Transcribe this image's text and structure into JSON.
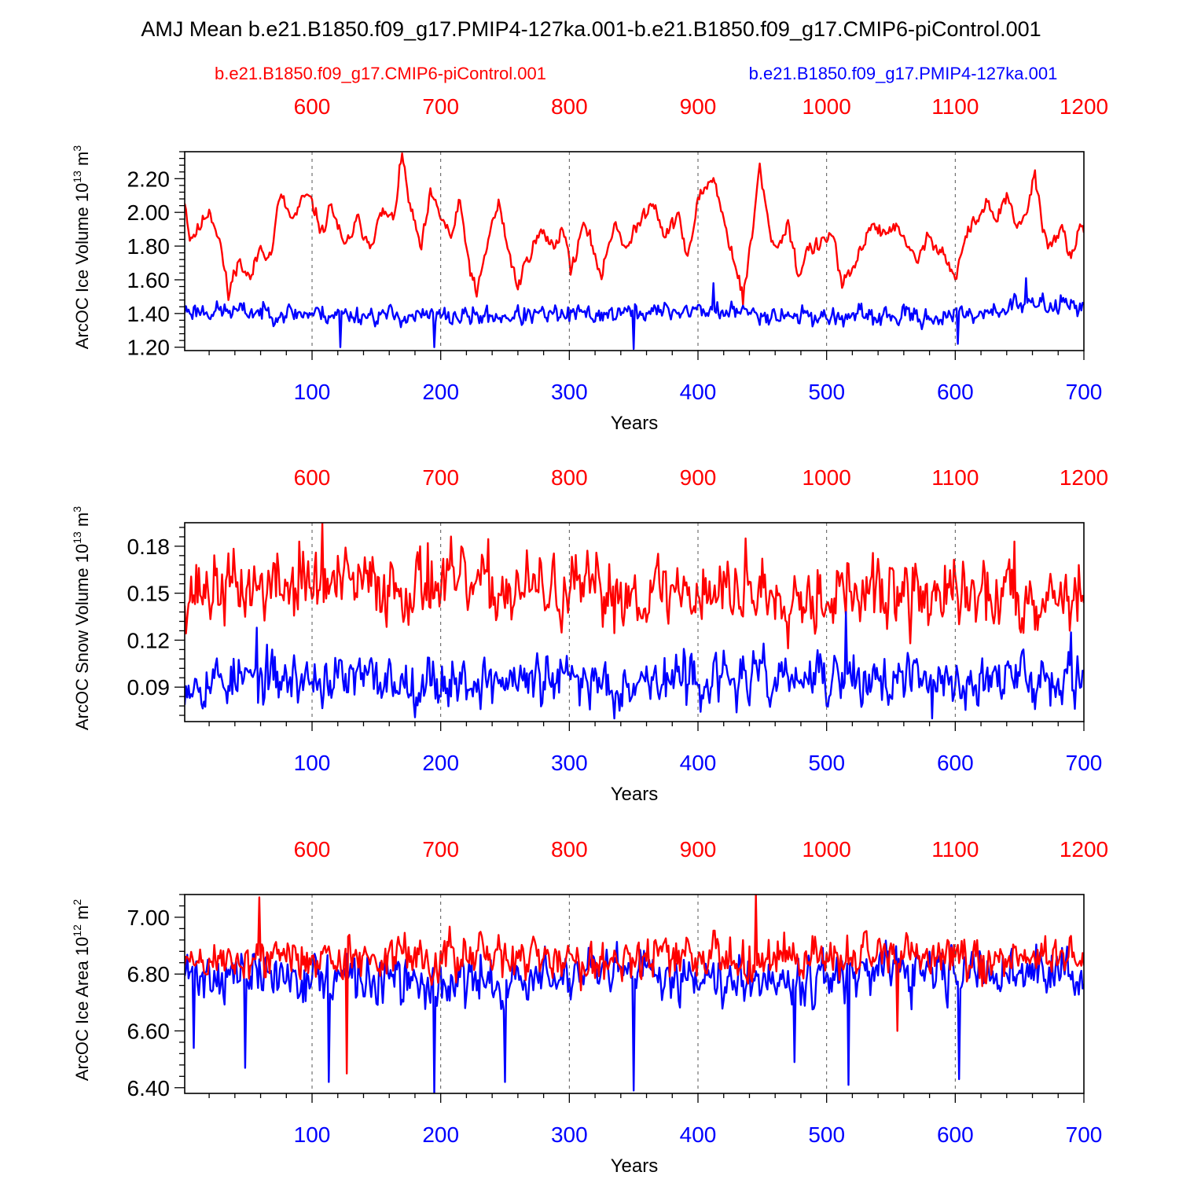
{
  "title": "AMJ Mean b.e21.B1850.f09_g17.PMIP4-127ka.001-b.e21.B1850.f09_g17.CMIP6-piControl.001",
  "colors": {
    "control": "#ff0000",
    "experiment": "#0000ff",
    "axis": "#000000"
  },
  "legend": {
    "control": "b.e21.B1850.f09_g17.CMIP6-piControl.001",
    "experiment": "b.e21.B1850.f09_g17.PMIP4-127ka.001"
  },
  "chart_data": [
    {
      "type": "line",
      "ylabel": {
        "main": "ArcOC Ice Volume 10",
        "sup": "13",
        "tail": " m",
        "sup2": "3"
      },
      "xlabel": "Years",
      "xlim_bottom": [
        1,
        700
      ],
      "xlim_top": [
        501,
        1200
      ],
      "ylim": [
        1.18,
        2.36
      ],
      "yticks": [
        1.2,
        1.4,
        1.6,
        1.8,
        2.0,
        2.2
      ],
      "ytick_labels": [
        "1.20",
        "1.40",
        "1.60",
        "1.80",
        "2.00",
        "2.20"
      ],
      "xticks_bottom": [
        100,
        200,
        300,
        400,
        500,
        600,
        700
      ],
      "xtick_labels_bottom": [
        "100",
        "200",
        "300",
        "400",
        "500",
        "600",
        "700"
      ],
      "xticks_top": [
        600,
        700,
        800,
        900,
        1000,
        1100,
        1200
      ],
      "xtick_labels_top": [
        "600",
        "700",
        "800",
        "900",
        "1000",
        "1100",
        "1200"
      ],
      "grid": "dashed vertical at ticks",
      "series": [
        {
          "name": "b.e21.B1850.f09_g17.CMIP6-piControl.001",
          "role": "control",
          "keypoints": [
            [
              1,
              2.08
            ],
            [
              5,
              1.85
            ],
            [
              12,
              1.9
            ],
            [
              20,
              2.02
            ],
            [
              28,
              1.85
            ],
            [
              35,
              1.5
            ],
            [
              42,
              1.72
            ],
            [
              52,
              1.6
            ],
            [
              60,
              1.8
            ],
            [
              68,
              1.74
            ],
            [
              75,
              2.1
            ],
            [
              85,
              1.95
            ],
            [
              95,
              2.1
            ],
            [
              100,
              2.05
            ],
            [
              108,
              1.88
            ],
            [
              115,
              2.05
            ],
            [
              125,
              1.78
            ],
            [
              135,
              1.95
            ],
            [
              145,
              1.82
            ],
            [
              155,
              2.0
            ],
            [
              163,
              1.95
            ],
            [
              170,
              2.33
            ],
            [
              177,
              2.0
            ],
            [
              185,
              1.78
            ],
            [
              192,
              2.1
            ],
            [
              200,
              1.98
            ],
            [
              208,
              1.85
            ],
            [
              215,
              2.05
            ],
            [
              222,
              1.7
            ],
            [
              228,
              1.5
            ],
            [
              238,
              1.88
            ],
            [
              245,
              2.05
            ],
            [
              252,
              1.8
            ],
            [
              260,
              1.55
            ],
            [
              268,
              1.75
            ],
            [
              278,
              1.88
            ],
            [
              288,
              1.8
            ],
            [
              295,
              1.92
            ],
            [
              302,
              1.65
            ],
            [
              310,
              1.92
            ],
            [
              318,
              1.8
            ],
            [
              325,
              1.62
            ],
            [
              335,
              1.95
            ],
            [
              345,
              1.78
            ],
            [
              355,
              1.95
            ],
            [
              365,
              2.08
            ],
            [
              375,
              1.85
            ],
            [
              385,
              2.0
            ],
            [
              392,
              1.7
            ],
            [
              400,
              2.08
            ],
            [
              412,
              2.22
            ],
            [
              420,
              1.95
            ],
            [
              428,
              1.72
            ],
            [
              435,
              1.5
            ],
            [
              442,
              1.85
            ],
            [
              448,
              2.28
            ],
            [
              455,
              1.9
            ],
            [
              462,
              1.78
            ],
            [
              470,
              1.95
            ],
            [
              478,
              1.62
            ],
            [
              485,
              1.78
            ],
            [
              495,
              1.8
            ],
            [
              505,
              1.88
            ],
            [
              512,
              1.55
            ],
            [
              520,
              1.65
            ],
            [
              528,
              1.8
            ],
            [
              535,
              1.95
            ],
            [
              545,
              1.85
            ],
            [
              555,
              1.95
            ],
            [
              562,
              1.78
            ],
            [
              570,
              1.72
            ],
            [
              580,
              1.85
            ],
            [
              590,
              1.78
            ],
            [
              600,
              1.6
            ],
            [
              608,
              1.85
            ],
            [
              615,
              1.95
            ],
            [
              625,
              2.05
            ],
            [
              632,
              1.95
            ],
            [
              640,
              2.1
            ],
            [
              648,
              1.88
            ],
            [
              655,
              2.0
            ],
            [
              662,
              2.22
            ],
            [
              668,
              1.9
            ],
            [
              675,
              1.8
            ],
            [
              682,
              1.92
            ],
            [
              690,
              1.7
            ],
            [
              695,
              1.88
            ],
            [
              700,
              1.9
            ]
          ],
          "noise_amp": 0.045,
          "spikes": [
            [
              35,
              1.48
            ],
            [
              170,
              2.35
            ],
            [
              228,
              1.5
            ],
            [
              435,
              1.45
            ],
            [
              448,
              2.29
            ],
            [
              662,
              2.25
            ]
          ],
          "seed": 11
        },
        {
          "name": "b.e21.B1850.f09_g17.PMIP4-127ka.001",
          "role": "experiment",
          "keypoints": [
            [
              1,
              1.42
            ],
            [
              100,
              1.4
            ],
            [
              200,
              1.38
            ],
            [
              300,
              1.39
            ],
            [
              400,
              1.42
            ],
            [
              500,
              1.38
            ],
            [
              600,
              1.38
            ],
            [
              650,
              1.45
            ],
            [
              700,
              1.46
            ]
          ],
          "noise_amp": 0.055,
          "spikes": [
            [
              122,
              1.2
            ],
            [
              195,
              1.2
            ],
            [
              350,
              1.19
            ],
            [
              412,
              1.58
            ],
            [
              602,
              1.22
            ],
            [
              655,
              1.61
            ]
          ],
          "seed": 23
        }
      ]
    },
    {
      "type": "line",
      "ylabel": {
        "main": "ArcOC Snow Volume 10",
        "sup": "13",
        "tail": " m",
        "sup2": "3"
      },
      "xlabel": "Years",
      "xlim_bottom": [
        1,
        700
      ],
      "xlim_top": [
        501,
        1200
      ],
      "ylim": [
        0.068,
        0.195
      ],
      "yticks": [
        0.09,
        0.12,
        0.15,
        0.18
      ],
      "ytick_labels": [
        "0.09",
        "0.12",
        "0.15",
        "0.18"
      ],
      "xticks_bottom": [
        100,
        200,
        300,
        400,
        500,
        600,
        700
      ],
      "xtick_labels_bottom": [
        "100",
        "200",
        "300",
        "400",
        "500",
        "600",
        "700"
      ],
      "xticks_top": [
        600,
        700,
        800,
        900,
        1000,
        1100,
        1200
      ],
      "xtick_labels_top": [
        "600",
        "700",
        "800",
        "900",
        "1000",
        "1100",
        "1200"
      ],
      "grid": "dashed vertical at ticks",
      "series": [
        {
          "name": "b.e21.B1850.f09_g17.CMIP6-piControl.001",
          "role": "control",
          "keypoints": [
            [
              1,
              0.152
            ],
            [
              100,
              0.155
            ],
            [
              200,
              0.155
            ],
            [
              300,
              0.15
            ],
            [
              400,
              0.152
            ],
            [
              500,
              0.15
            ],
            [
              600,
              0.148
            ],
            [
              700,
              0.15
            ]
          ],
          "noise_amp": 0.022,
          "spikes": [
            [
              90,
              0.183
            ],
            [
              108,
              0.195
            ],
            [
              190,
              0.182
            ],
            [
              437,
              0.185
            ],
            [
              565,
              0.118
            ],
            [
              646,
              0.183
            ]
          ],
          "seed": 37
        },
        {
          "name": "b.e21.B1850.f09_g17.PMIP4-127ka.001",
          "role": "experiment",
          "keypoints": [
            [
              1,
              0.095
            ],
            [
              100,
              0.095
            ],
            [
              200,
              0.094
            ],
            [
              300,
              0.094
            ],
            [
              400,
              0.095
            ],
            [
              500,
              0.095
            ],
            [
              600,
              0.093
            ],
            [
              700,
              0.098
            ]
          ],
          "noise_amp": 0.016,
          "spikes": [
            [
              57,
              0.128
            ],
            [
              335,
              0.07
            ],
            [
              515,
              0.138
            ],
            [
              582,
              0.07
            ],
            [
              690,
              0.125
            ]
          ],
          "seed": 53
        }
      ]
    },
    {
      "type": "line",
      "ylabel": {
        "main": "ArcOC Ice Area 10",
        "sup": "12",
        "tail": " m",
        "sup2": "2"
      },
      "xlabel": "Years",
      "xlim_bottom": [
        1,
        700
      ],
      "xlim_top": [
        501,
        1200
      ],
      "ylim": [
        6.38,
        7.08
      ],
      "yticks": [
        6.4,
        6.6,
        6.8,
        7.0
      ],
      "ytick_labels": [
        "6.40",
        "6.60",
        "6.80",
        "7.00"
      ],
      "xticks_bottom": [
        100,
        200,
        300,
        400,
        500,
        600,
        700
      ],
      "xtick_labels_bottom": [
        "100",
        "200",
        "300",
        "400",
        "500",
        "600",
        "700"
      ],
      "xticks_top": [
        600,
        700,
        800,
        900,
        1000,
        1100,
        1200
      ],
      "xtick_labels_top": [
        "600",
        "700",
        "800",
        "900",
        "1000",
        "1100",
        "1200"
      ],
      "grid": "dashed vertical at ticks",
      "series": [
        {
          "name": "b.e21.B1850.f09_g17.PMIP4-127ka.001",
          "role": "experiment",
          "keypoints": [
            [
              1,
              6.8
            ],
            [
              100,
              6.79
            ],
            [
              200,
              6.76
            ],
            [
              300,
              6.79
            ],
            [
              400,
              6.8
            ],
            [
              500,
              6.79
            ],
            [
              600,
              6.8
            ],
            [
              700,
              6.8
            ]
          ],
          "noise_amp": 0.085,
          "spikes": [
            [
              8,
              6.54
            ],
            [
              48,
              6.47
            ],
            [
              113,
              6.42
            ],
            [
              195,
              6.38
            ],
            [
              250,
              6.42
            ],
            [
              350,
              6.39
            ],
            [
              475,
              6.49
            ],
            [
              517,
              6.41
            ],
            [
              603,
              6.43
            ]
          ],
          "seed": 71
        },
        {
          "name": "b.e21.B1850.f09_g17.CMIP6-piControl.001",
          "role": "control",
          "keypoints": [
            [
              1,
              6.84
            ],
            [
              100,
              6.86
            ],
            [
              200,
              6.86
            ],
            [
              300,
              6.85
            ],
            [
              400,
              6.86
            ],
            [
              500,
              6.86
            ],
            [
              600,
              6.85
            ],
            [
              700,
              6.86
            ]
          ],
          "noise_amp": 0.075,
          "spikes": [
            [
              59,
              7.07
            ],
            [
              127,
              6.45
            ],
            [
              445,
              7.08
            ],
            [
              555,
              6.6
            ]
          ],
          "seed": 89
        }
      ]
    }
  ]
}
